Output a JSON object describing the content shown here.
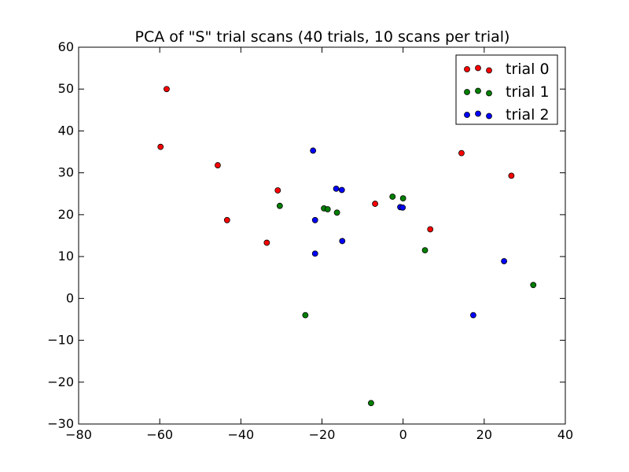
{
  "chart_data": {
    "type": "scatter",
    "title": "PCA of \"S\" trial scans (40 trials, 10 scans per trial)",
    "xlabel": "",
    "ylabel": "",
    "xlim": [
      -80,
      40
    ],
    "ylim": [
      -30,
      60
    ],
    "x_ticks": [
      -80,
      -60,
      -40,
      -20,
      0,
      20,
      40
    ],
    "y_ticks": [
      -30,
      -20,
      -10,
      0,
      10,
      20,
      30,
      40,
      50,
      60
    ],
    "x_tick_labels": [
      "−80",
      "−60",
      "−40",
      "−20",
      "0",
      "20",
      "40"
    ],
    "y_tick_labels": [
      "−30",
      "−20",
      "−10",
      "0",
      "10",
      "20",
      "30",
      "40",
      "50",
      "60"
    ],
    "grid": false,
    "legend_position": "top-right",
    "series": [
      {
        "name": "trial 0",
        "color": "#ff0000",
        "points": [
          [
            -58.3,
            50.0
          ],
          [
            -59.8,
            36.2
          ],
          [
            -45.7,
            31.8
          ],
          [
            -30.9,
            25.8
          ],
          [
            -43.4,
            18.7
          ],
          [
            -33.6,
            13.3
          ],
          [
            -6.9,
            22.6
          ],
          [
            6.7,
            16.5
          ],
          [
            14.4,
            34.7
          ],
          [
            26.7,
            29.3
          ]
        ]
      },
      {
        "name": "trial 1",
        "color": "#007f00",
        "points": [
          [
            -30.4,
            22.1
          ],
          [
            -19.5,
            21.5
          ],
          [
            -18.6,
            21.3
          ],
          [
            -16.3,
            20.5
          ],
          [
            -2.6,
            24.3
          ],
          [
            0.0,
            23.9
          ],
          [
            5.4,
            11.5
          ],
          [
            32.1,
            3.2
          ],
          [
            -24.1,
            -4.0
          ],
          [
            -7.9,
            -25.0
          ]
        ]
      },
      {
        "name": "trial 2",
        "color": "#0000ff",
        "points": [
          [
            -22.2,
            35.3
          ],
          [
            -16.5,
            26.2
          ],
          [
            -15.1,
            25.9
          ],
          [
            -21.7,
            18.7
          ],
          [
            -0.7,
            21.8
          ],
          [
            -0.1,
            21.7
          ],
          [
            -15.0,
            13.7
          ],
          [
            -21.7,
            10.7
          ],
          [
            24.9,
            8.9
          ],
          [
            17.3,
            -4.0
          ]
        ]
      }
    ]
  }
}
